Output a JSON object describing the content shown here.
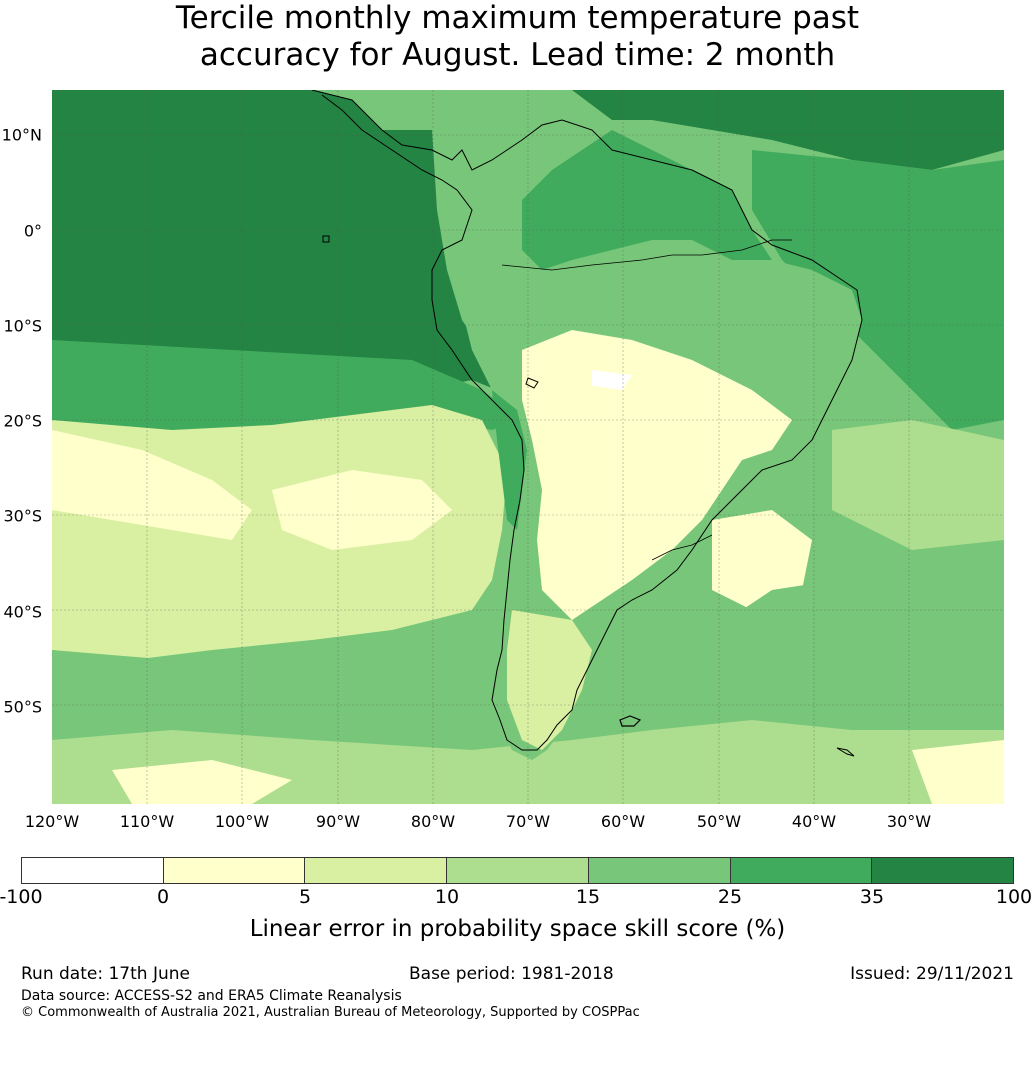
{
  "title": {
    "line1": "Tercile monthly maximum temperature past",
    "line2": "accuracy for August. Lead time: 2 month"
  },
  "map": {
    "lat_labels": [
      "10°N",
      "0°",
      "10°S",
      "20°S",
      "30°S",
      "40°S",
      "50°S"
    ],
    "lon_labels": [
      "120°W",
      "110°W",
      "100°W",
      "90°W",
      "80°W",
      "70°W",
      "60°W",
      "50°W",
      "40°W",
      "30°W"
    ],
    "extent": {
      "lon": [
        -120,
        -20
      ],
      "lat": [
        -60,
        15
      ]
    }
  },
  "colorbar": {
    "ticks": [
      "-100",
      "0",
      "5",
      "10",
      "15",
      "25",
      "35",
      "100"
    ],
    "colors": [
      "#ffffff",
      "#ffffcc",
      "#d9f0a3",
      "#addd8e",
      "#78c679",
      "#41ab5d",
      "#238443"
    ],
    "label": "Linear error in probability space skill score (%)"
  },
  "footer": {
    "run_date": "Run date: 17th June",
    "base_period": "Base period: 1981-2018",
    "issued": "Issued: 29/11/2021",
    "data_source": "Data source: ACCESS-S2 and ERA5 Climate Reanalysis",
    "copyright": "© Commonwealth of Australia 2021, Australian Bureau of Meteorology, Supported by COSPPac"
  }
}
